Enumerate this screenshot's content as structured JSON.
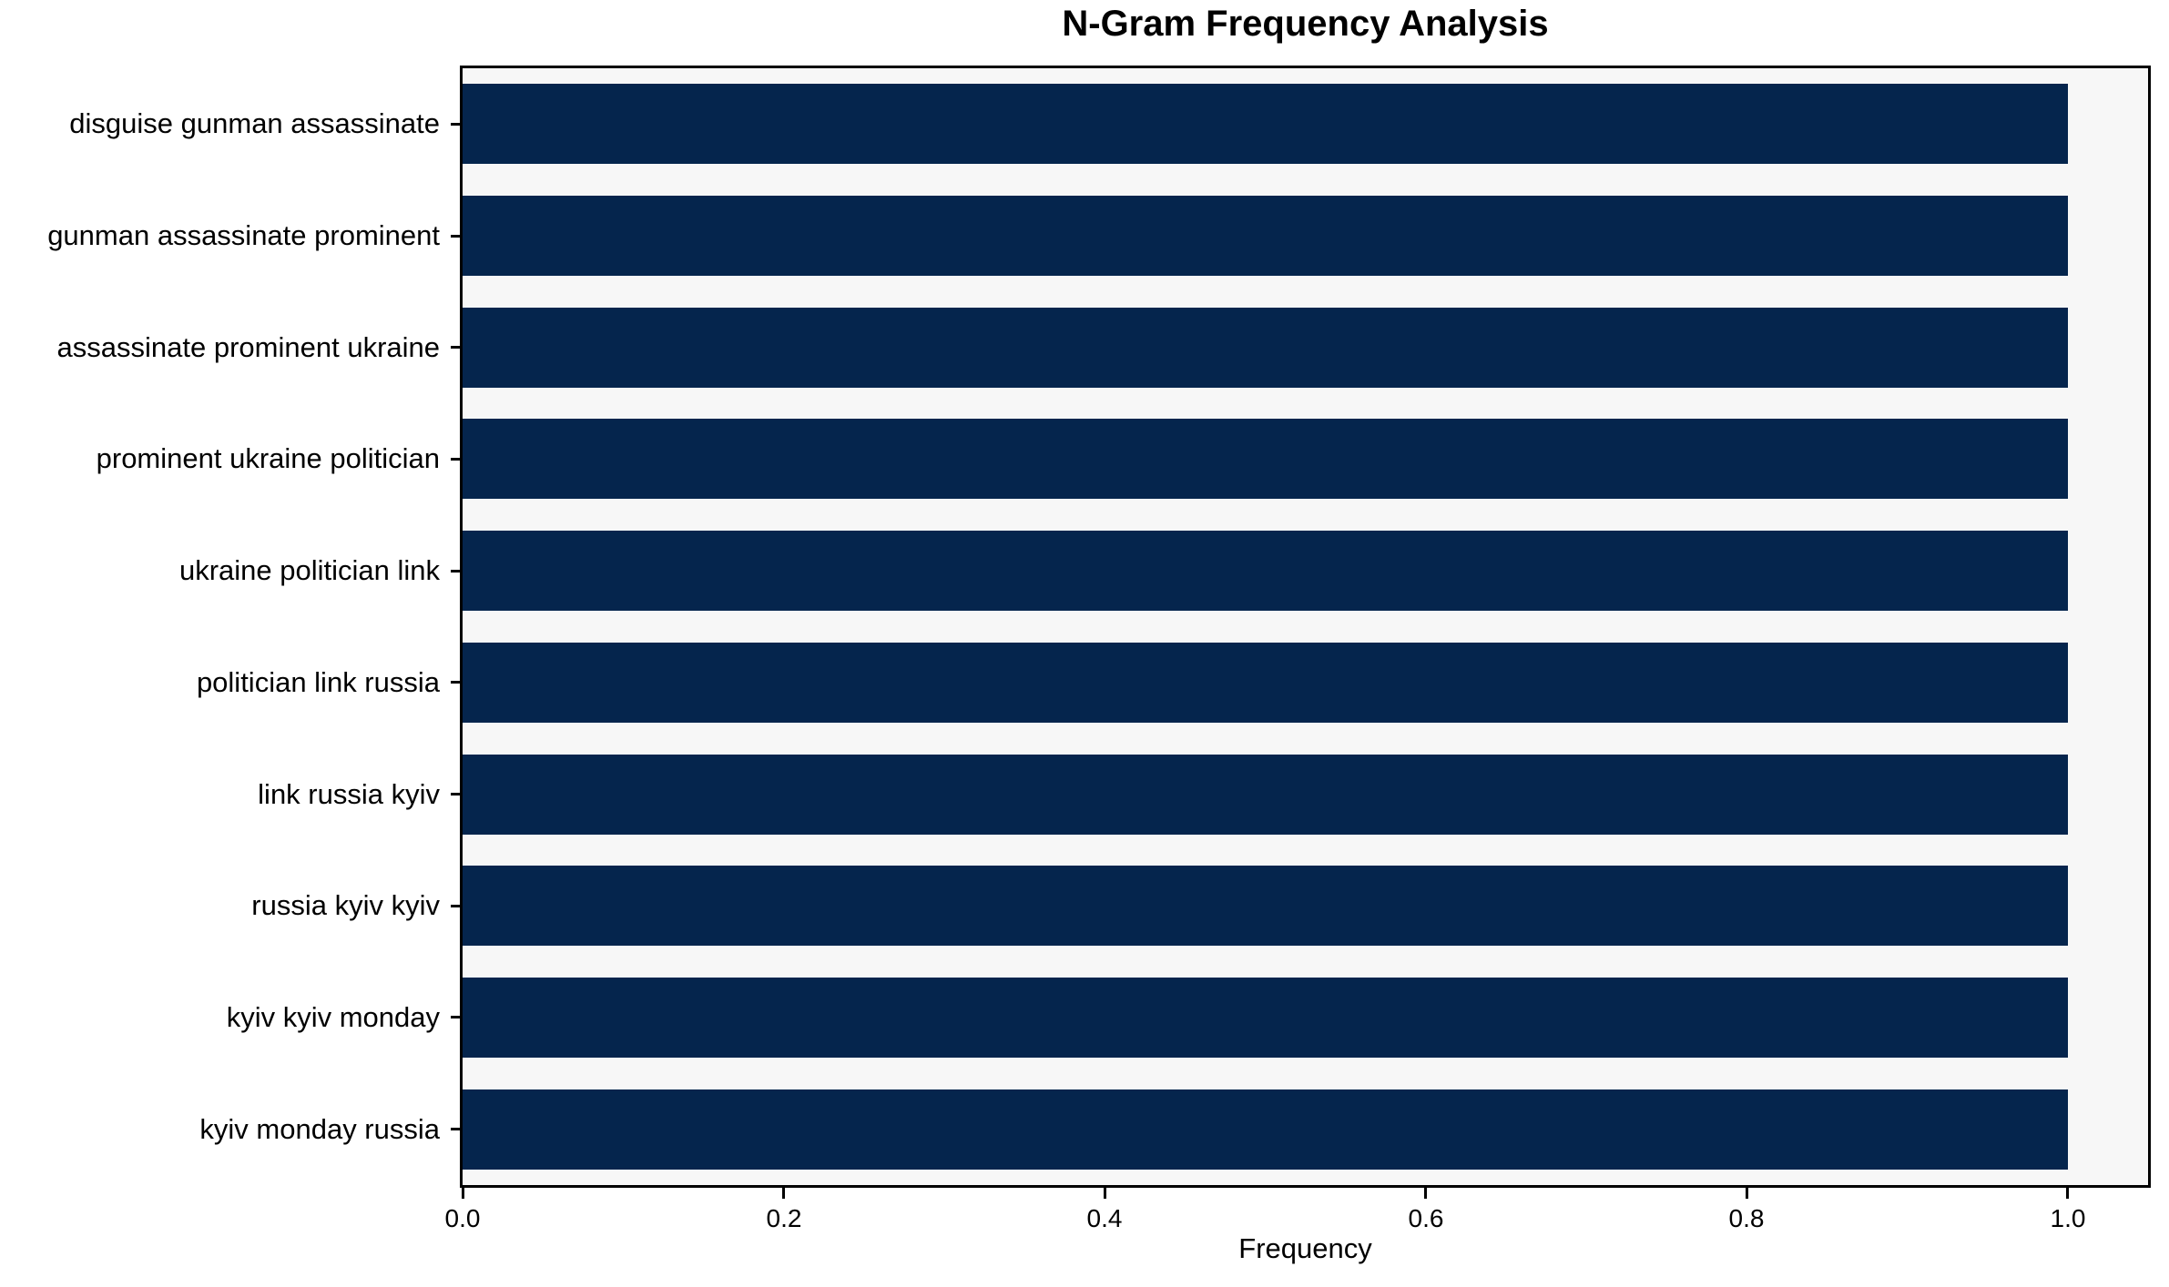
{
  "chart_data": {
    "type": "bar",
    "orientation": "horizontal",
    "title": "N-Gram Frequency Analysis",
    "xlabel": "Frequency",
    "ylabel": "",
    "categories": [
      "disguise gunman assassinate",
      "gunman assassinate prominent",
      "assassinate prominent ukraine",
      "prominent ukraine politician",
      "ukraine politician link",
      "politician link russia",
      "link russia kyiv",
      "russia kyiv kyiv",
      "kyiv kyiv monday",
      "kyiv monday russia"
    ],
    "values": [
      1.0,
      1.0,
      1.0,
      1.0,
      1.0,
      1.0,
      1.0,
      1.0,
      1.0,
      1.0
    ],
    "xticks": [
      0.0,
      0.2,
      0.4,
      0.6,
      0.8,
      1.0
    ],
    "xtick_labels": [
      "0.0",
      "0.2",
      "0.4",
      "0.6",
      "0.8",
      "1.0"
    ],
    "xlim": [
      0,
      1.05
    ],
    "grid": false,
    "legend": null,
    "colors": {
      "bar": "#05254d",
      "plot_background": "#f7f7f7",
      "figure_background": "#ffffff",
      "text": "#000000",
      "spine": "#000000"
    }
  }
}
